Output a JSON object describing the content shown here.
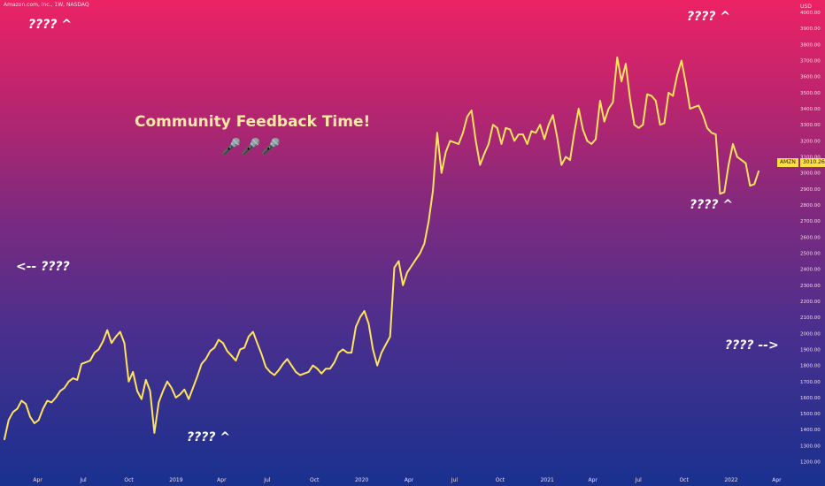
{
  "header": {
    "symbol_line": "Amazon.com, Inc., 1W, NASDAQ",
    "currency": "USD"
  },
  "annotations": {
    "feedback_title": "Community Feedback Time!",
    "mics": "🎤🎤🎤",
    "top_left": "???? ^",
    "top_right": "???? ^",
    "mid_right": "???? ^",
    "left_arrow": "<-- ????",
    "bottom_mid": "???? ^",
    "right_arrow": "???? -->"
  },
  "price_tag": {
    "ticker": "AMZN",
    "value": "3010.26"
  },
  "colors": {
    "line": "#ffe45c",
    "axis_text": "#f3dbe4",
    "tag_bg": "#ffde45"
  },
  "chart_data": {
    "type": "line",
    "title": "",
    "xlabel": "",
    "ylabel": "",
    "series": [
      {
        "values": [
          1340,
          1460,
          1510,
          1530,
          1580,
          1560,
          1480,
          1440,
          1460,
          1530,
          1580,
          1570,
          1600,
          1640,
          1660,
          1700,
          1720,
          1710,
          1810,
          1820,
          1830,
          1880,
          1900,
          1950,
          2020,
          1940,
          1980,
          2010,
          1940,
          1700,
          1760,
          1640,
          1590,
          1710,
          1640,
          1380,
          1570,
          1640,
          1700,
          1660,
          1600,
          1620,
          1650,
          1590,
          1660,
          1730,
          1810,
          1840,
          1890,
          1910,
          1960,
          1940,
          1890,
          1860,
          1830,
          1900,
          1910,
          1980,
          2010,
          1940,
          1870,
          1790,
          1760,
          1740,
          1770,
          1810,
          1840,
          1800,
          1760,
          1740,
          1750,
          1760,
          1800,
          1780,
          1750,
          1780,
          1780,
          1820,
          1880,
          1900,
          1880,
          1880,
          2040,
          2100,
          2140,
          2060,
          1900,
          1800,
          1880,
          1930,
          1980,
          2410,
          2450,
          2300,
          2380,
          2420,
          2460,
          2500,
          2560,
          2700,
          2890,
          3250,
          3000,
          3130,
          3200,
          3190,
          3180,
          3250,
          3350,
          3390,
          3200,
          3050,
          3120,
          3180,
          3300,
          3280,
          3180,
          3280,
          3270,
          3200,
          3240,
          3240,
          3180,
          3260,
          3250,
          3300,
          3210,
          3300,
          3360,
          3220,
          3050,
          3100,
          3080,
          3250,
          3400,
          3270,
          3200,
          3180,
          3210,
          3450,
          3320,
          3400,
          3440,
          3720,
          3570,
          3680,
          3460,
          3300,
          3280,
          3300,
          3490,
          3480,
          3450,
          3300,
          3310,
          3500,
          3480,
          3610,
          3700,
          3560,
          3400,
          3410,
          3420,
          3360,
          3280,
          3250,
          3240,
          2870,
          2880,
          3050,
          3180,
          3100,
          3080,
          3060,
          2920,
          2930,
          3010
        ]
      }
    ],
    "x_ticks": [
      {
        "label": "Apr",
        "t": 0.02
      },
      {
        "label": "Jul",
        "t": 0.155
      },
      {
        "label": "Oct",
        "t": 0.29
      },
      {
        "label": "2019",
        "t": 0.43
      },
      {
        "label": "Apr",
        "t": 0.565
      },
      {
        "label": "Jul",
        "t": 0.7
      },
      {
        "label": "Oct",
        "t": 0.84
      },
      {
        "label": "2020",
        "t": 0.98
      },
      {
        "label": "Apr",
        "t": 1.12
      },
      {
        "label": "Jul",
        "t": 1.255
      },
      {
        "label": "Oct",
        "t": 1.39
      },
      {
        "label": "2021",
        "t": 1.53
      },
      {
        "label": "Apr",
        "t": 1.665
      },
      {
        "label": "Jul",
        "t": 1.8
      },
      {
        "label": "Oct",
        "t": 1.935
      },
      {
        "label": "2022",
        "t": 2.075
      },
      {
        "label": "Apr",
        "t": 2.21
      }
    ],
    "y_ticks": [
      1200,
      1300,
      1400,
      1500,
      1600,
      1700,
      1800,
      1900,
      2000,
      2100,
      2200,
      2300,
      2400,
      2500,
      2600,
      2700,
      2800,
      2900,
      3000,
      3100,
      3200,
      3300,
      3400,
      3500,
      3600,
      3700,
      3800,
      3900,
      4000
    ],
    "ylim": [
      1170,
      4050
    ],
    "grid": false
  }
}
